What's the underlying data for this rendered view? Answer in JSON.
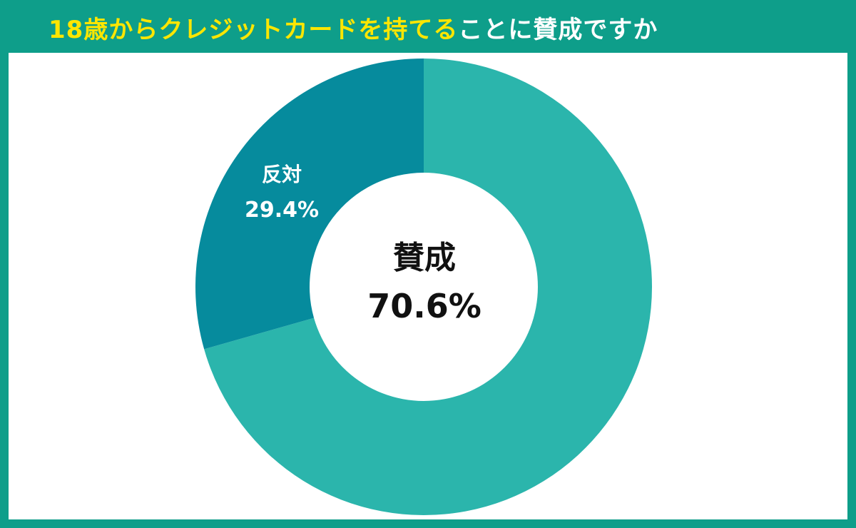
{
  "title": {
    "highlight": "18歳からクレジットカードを持てる",
    "rest": "ことに賛成ですか"
  },
  "colors": {
    "frame": "#0e9e8a",
    "title_highlight": "#ffe600",
    "title_rest": "#ffffff",
    "panel": "#ffffff"
  },
  "chart_data": {
    "type": "pie",
    "variant": "donut",
    "start": "top",
    "direction": "clockwise",
    "slices": [
      {
        "label": "賛成",
        "value": 70.6,
        "value_label": "70.6%",
        "color": "#2bb5ac"
      },
      {
        "label": "反対",
        "value": 29.4,
        "value_label": "29.4%",
        "color": "#068b9d"
      }
    ],
    "legend": "none"
  }
}
